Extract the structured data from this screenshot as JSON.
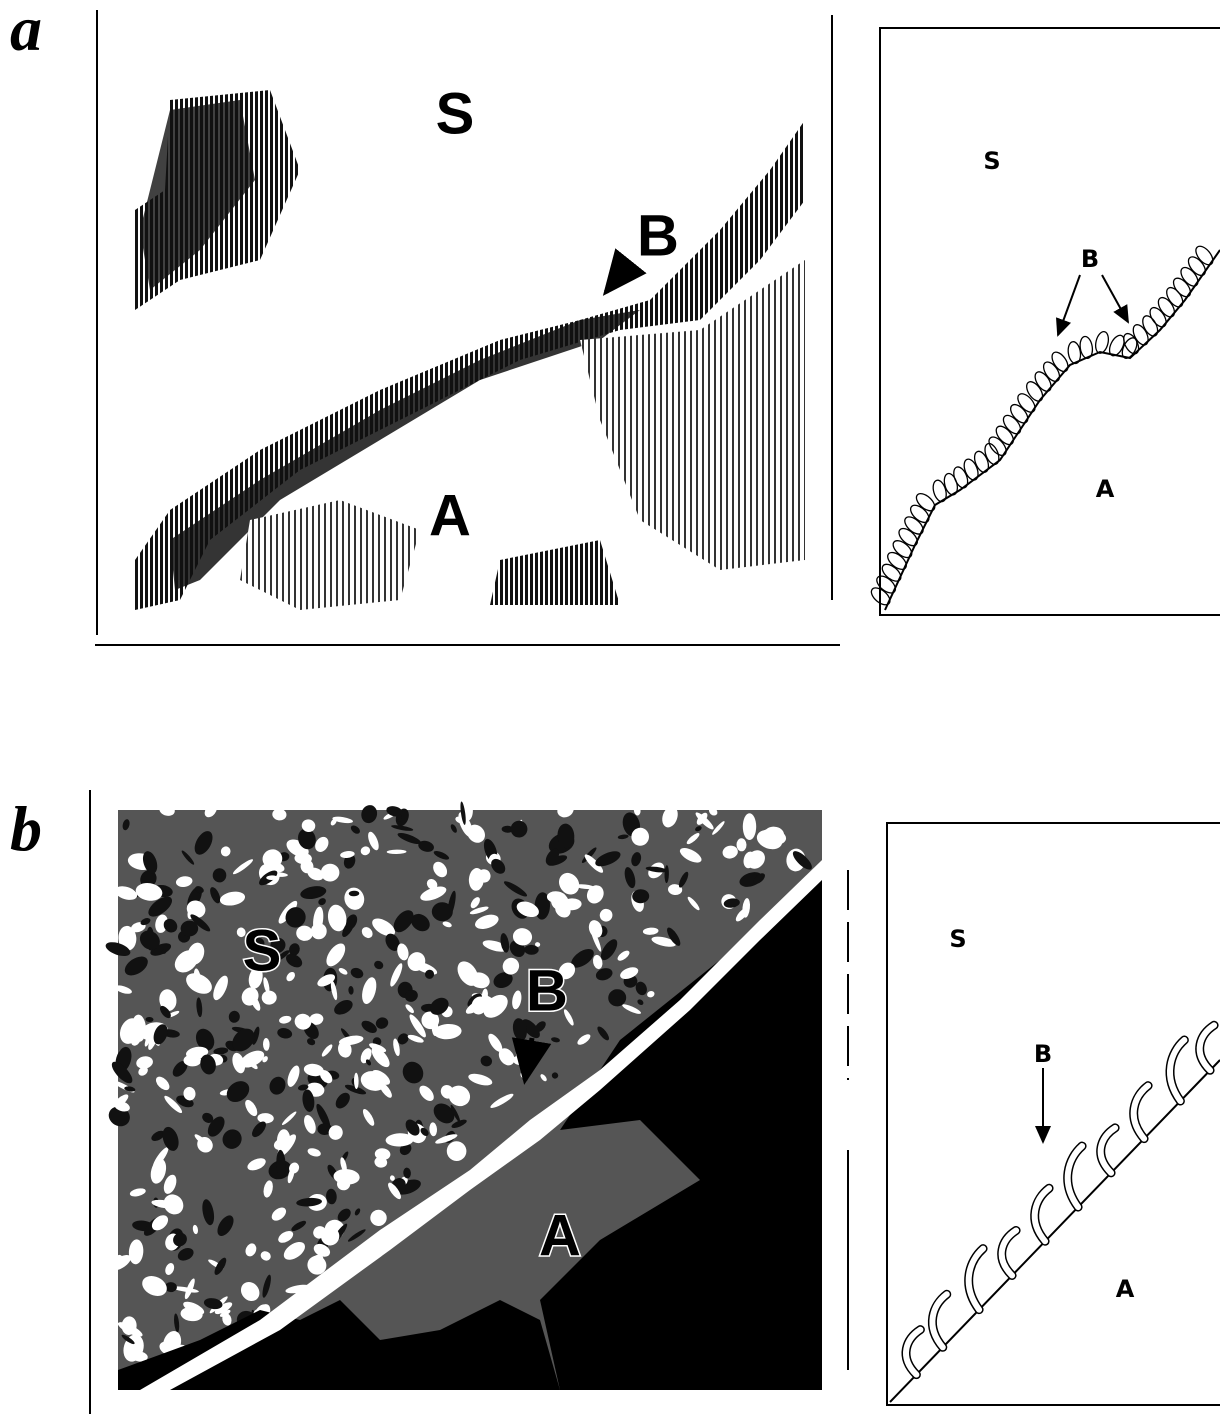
{
  "panels": [
    {
      "label": "a",
      "photo_labels": [
        "S",
        "B",
        "A"
      ],
      "schematic_labels": [
        "S",
        "B",
        "A"
      ]
    },
    {
      "label": "b",
      "photo_labels": [
        "S",
        "B",
        "A"
      ],
      "schematic_labels": [
        "S",
        "B",
        "A"
      ]
    }
  ]
}
